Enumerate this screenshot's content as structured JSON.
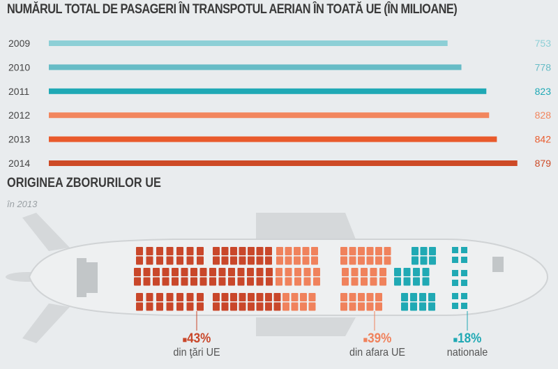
{
  "chart_data": [
    {
      "type": "bar",
      "title": "NUMĂRUL TOTAL DE PASAGERI ÎN TRANSPOTUL AERIAN ÎN TOATĂ UE (ÎN MILIOANE)",
      "categories": [
        "2009",
        "2010",
        "2011",
        "2012",
        "2013",
        "2014"
      ],
      "values": [
        753,
        778,
        823,
        828,
        842,
        879
      ],
      "colors": [
        "#8dcfd6",
        "#67bcc6",
        "#1fa9b5",
        "#f2865e",
        "#e95a2c",
        "#cd4a26"
      ],
      "orientation": "horizontal"
    },
    {
      "type": "pie",
      "title": "ORIGINEA ZBORURILOR UE",
      "subtitle": "în 2013",
      "categories": [
        "din ţări UE",
        "din afara UE",
        "nationale"
      ],
      "values": [
        43,
        39,
        18
      ],
      "labels": [
        "43%",
        "39%",
        "18%"
      ],
      "colors": [
        "#c9472a",
        "#f0825c",
        "#20a9b4"
      ]
    }
  ]
}
